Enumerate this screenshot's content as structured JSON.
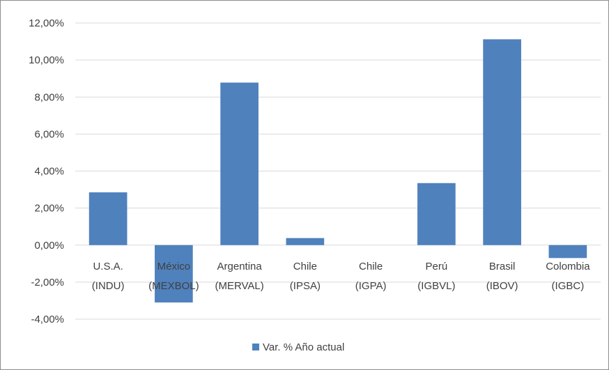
{
  "chart_data": {
    "type": "bar",
    "categories": [
      [
        "U.S.A.",
        "(INDU)"
      ],
      [
        "México",
        "(MEXBOL)"
      ],
      [
        "Argentina",
        "(MERVAL)"
      ],
      [
        "Chile",
        "(IPSA)"
      ],
      [
        "Chile",
        "(IGPA)"
      ],
      [
        "Perú",
        "(IGBVL)"
      ],
      [
        "Brasil",
        "(IBOV)"
      ],
      [
        "Colombia",
        "(IGBC)"
      ]
    ],
    "series": [
      {
        "name": "Var. % Año actual",
        "color": "#4f81bd",
        "values": [
          2.85,
          -3.1,
          8.78,
          0.38,
          0.0,
          3.35,
          11.12,
          -0.7
        ]
      }
    ],
    "ylim": [
      -4,
      12
    ],
    "yticks": [
      -4,
      -2,
      0,
      2,
      4,
      6,
      8,
      10,
      12
    ],
    "ytick_labels": [
      "-4,00%",
      "-2,00%",
      "0,00%",
      "2,00%",
      "4,00%",
      "6,00%",
      "8,00%",
      "10,00%",
      "12,00%"
    ],
    "grid": true,
    "legend_position": "bottom"
  }
}
